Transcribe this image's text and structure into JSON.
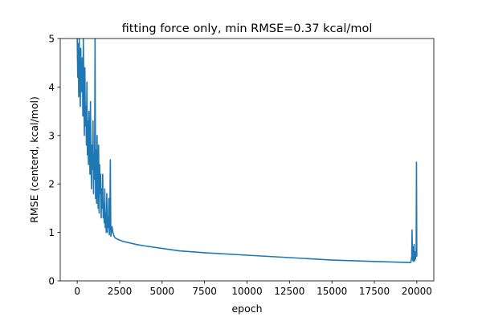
{
  "chart_data": {
    "type": "line",
    "title": "fitting force only, min RMSE=0.37 kcal/mol",
    "xlabel": "epoch",
    "ylabel": "RMSE (centerd, kcal/mol)",
    "xlim": [
      -1000,
      21000
    ],
    "ylim": [
      0,
      5
    ],
    "xticks": [
      0,
      2500,
      5000,
      7500,
      10000,
      12500,
      15000,
      17500,
      20000
    ],
    "yticks": [
      0,
      1,
      2,
      3,
      4,
      5
    ],
    "grid": false,
    "line_color": "#1f77b4",
    "series": [
      {
        "name": "RMSE",
        "x": [
          0,
          30,
          60,
          90,
          120,
          150,
          180,
          210,
          240,
          270,
          300,
          330,
          360,
          390,
          420,
          450,
          480,
          510,
          540,
          570,
          600,
          630,
          660,
          690,
          720,
          750,
          780,
          810,
          840,
          870,
          900,
          930,
          960,
          990,
          1020,
          1050,
          1080,
          1110,
          1140,
          1170,
          1200,
          1230,
          1260,
          1290,
          1320,
          1350,
          1380,
          1410,
          1440,
          1470,
          1500,
          1530,
          1560,
          1590,
          1620,
          1650,
          1680,
          1710,
          1740,
          1770,
          1800,
          1830,
          1860,
          1890,
          1920,
          1950,
          1980,
          2050,
          2100,
          2200,
          2300,
          2500,
          2750,
          3000,
          3500,
          4000,
          5000,
          6000,
          7500,
          10000,
          12500,
          15000,
          17500,
          19500,
          19650,
          19700,
          19720,
          19740,
          19760,
          19780,
          19800,
          19820,
          19840,
          19860,
          19880,
          19900,
          19920,
          19940,
          19960,
          19980,
          20000
        ],
        "y": [
          5.0,
          4.2,
          4.9,
          3.8,
          5.0,
          4.3,
          3.6,
          4.8,
          4.0,
          3.9,
          4.6,
          3.4,
          5.0,
          3.9,
          3.0,
          4.4,
          3.2,
          3.6,
          2.8,
          4.1,
          2.6,
          3.3,
          2.4,
          3.5,
          2.9,
          2.2,
          3.7,
          2.5,
          1.9,
          2.8,
          2.3,
          3.3,
          1.8,
          2.6,
          2.1,
          5.0,
          1.7,
          2.7,
          1.6,
          3.0,
          2.0,
          1.5,
          2.8,
          1.4,
          2.4,
          1.8,
          2.2,
          1.3,
          1.9,
          1.5,
          2.2,
          1.3,
          1.6,
          1.2,
          1.9,
          1.1,
          1.4,
          1.0,
          1.8,
          1.0,
          1.3,
          1.1,
          1.7,
          0.95,
          1.25,
          2.5,
          0.92,
          1.12,
          1.0,
          0.9,
          0.87,
          0.84,
          0.81,
          0.79,
          0.75,
          0.72,
          0.67,
          0.62,
          0.58,
          0.53,
          0.48,
          0.43,
          0.4,
          0.38,
          0.38,
          0.5,
          1.05,
          0.55,
          0.42,
          0.7,
          0.45,
          0.4,
          0.75,
          0.48,
          0.42,
          0.6,
          0.45,
          0.55,
          0.5,
          2.45,
          0.5
        ]
      }
    ]
  }
}
